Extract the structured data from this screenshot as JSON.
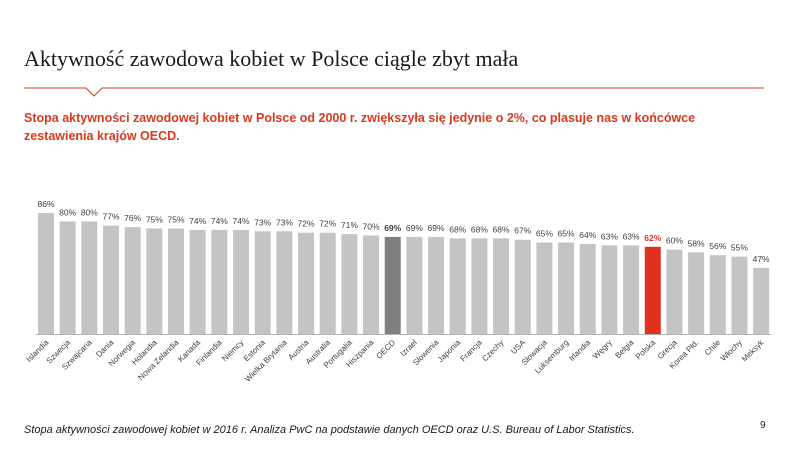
{
  "slide": {
    "title": "Aktywność zawodowa kobiet w Polsce ciągle zbyt mała",
    "subtitle": "Stopa aktywności zawodowej kobiet w Polsce od 2000 r. zwiększyła się jedynie o 2%, co plasuje nas w końcówce zestawienia krajów OECD.",
    "footnote": "Stopa aktywności zawodowej kobiet w 2016 r. Analiza PwC na podstawie danych OECD oraz U.S. Bureau of Labor Statistics.",
    "page_number": "9"
  },
  "colors": {
    "bar": "#c4c4c4",
    "oecd_bar": "#7f7f7f",
    "poland_bar": "#e0301e",
    "poland_label": "#e0301e",
    "subtitle": "#d93a1e",
    "rule": "#d93a1e"
  },
  "chart_data": {
    "type": "bar",
    "categories": [
      "Islandia",
      "Szwecja",
      "Szwajcaria",
      "Dania",
      "Norwegia",
      "Holandia",
      "Nowa Zelandia",
      "Kanada",
      "Finlandia",
      "Niemcy",
      "Estonia",
      "Wielka Brytania",
      "Austria",
      "Australia",
      "Portugalia",
      "Hiszpania",
      "OECD",
      "Izrael",
      "Słowenia",
      "Japonia",
      "Francja",
      "Czechy",
      "USA",
      "Słowacja",
      "Luksemburg",
      "Irlandia",
      "Węgry",
      "Belgia",
      "Polska",
      "Grecja",
      "Korea Płd.",
      "Chile",
      "Włochy",
      "Meksyk"
    ],
    "values": [
      86,
      80,
      80,
      77,
      76,
      75,
      75,
      74,
      74,
      74,
      73,
      73,
      72,
      72,
      71,
      70,
      69,
      69,
      69,
      68,
      68,
      68,
      67,
      65,
      65,
      64,
      63,
      63,
      62,
      60,
      58,
      56,
      55,
      47
    ],
    "value_labels": [
      "86%",
      "80%",
      "80%",
      "77%",
      "76%",
      "75%",
      "75%",
      "74%",
      "74%",
      "74%",
      "73%",
      "73%",
      "72%",
      "72%",
      "71%",
      "70%",
      "69%",
      "69%",
      "69%",
      "68%",
      "68%",
      "68%",
      "67%",
      "65%",
      "65%",
      "64%",
      "63%",
      "63%",
      "62%",
      "60%",
      "58%",
      "56%",
      "55%",
      "47%"
    ],
    "highlight": {
      "OECD": "oecd_bar",
      "Polska": "poland_bar"
    },
    "ylim": [
      0,
      86
    ],
    "grid": false,
    "legend": "none"
  }
}
